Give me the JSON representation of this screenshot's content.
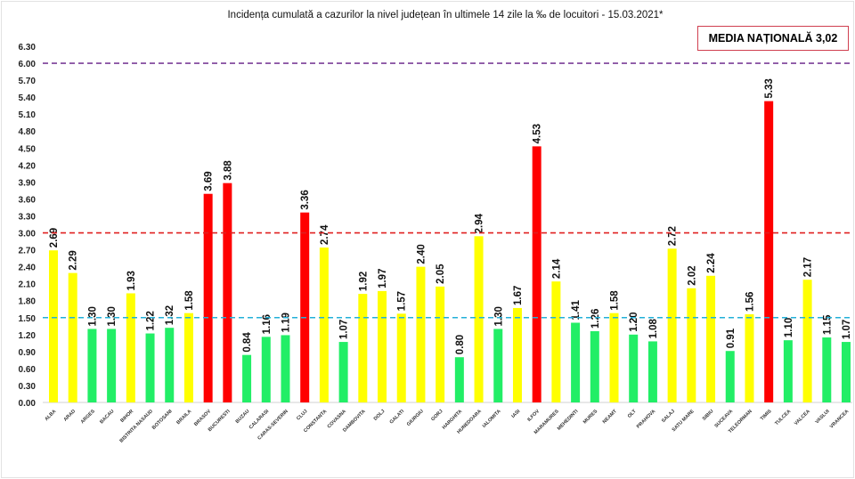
{
  "chart_data": {
    "type": "bar",
    "title": "Incidența cumulată a cazurilor la nivel județean în ultimele 14 zile   la ‰ de locuitori  - 15.03.2021*",
    "annotation": "MEDIA NAȚIONALĂ 3,02",
    "categories": [
      "ALBA",
      "ARAD",
      "ARGES",
      "BACAU",
      "BIHOR",
      "BISTRITA NASAUD",
      "BOTOSANI",
      "BRAILA",
      "BRASOV",
      "BUCURESTI",
      "BUZAU",
      "CALARASI",
      "CARAS-SEVERIN",
      "CLUJ",
      "CONSTANTA",
      "COVASNA",
      "DAMBOVITA",
      "DOLJ",
      "GALATI",
      "GIURGIU",
      "GORJ",
      "HARGHITA",
      "HUNEDOARA",
      "IALOMITA",
      "IASI",
      "ILFOV",
      "MARAMURES",
      "MEHEDINTI",
      "MURES",
      "NEAMT",
      "OLT",
      "PRAHOVA",
      "SALAJ",
      "SATU MARE",
      "SIBIU",
      "SUCEAVA",
      "TELEORMAN",
      "TIMIS",
      "TULCEA",
      "VALCEA",
      "VASLUI",
      "VRANCEA"
    ],
    "values": [
      2.69,
      2.29,
      1.3,
      1.3,
      1.93,
      1.22,
      1.32,
      1.58,
      3.69,
      3.88,
      0.84,
      1.16,
      1.19,
      3.36,
      2.74,
      1.07,
      1.92,
      1.97,
      1.57,
      2.4,
      2.05,
      0.8,
      2.94,
      1.3,
      1.67,
      4.53,
      2.14,
      1.41,
      1.26,
      1.58,
      1.2,
      1.08,
      2.72,
      2.02,
      2.24,
      0.91,
      1.56,
      5.33,
      1.1,
      2.17,
      1.15,
      1.07
    ],
    "ylim": [
      0,
      6.3
    ],
    "yticks": [
      "0.00",
      "0.30",
      "0.60",
      "0.90",
      "1.20",
      "1.50",
      "1.80",
      "2.10",
      "2.40",
      "2.70",
      "3.00",
      "3.30",
      "3.60",
      "3.90",
      "4.20",
      "4.50",
      "4.80",
      "5.10",
      "5.40",
      "5.70",
      "6.00",
      "6.30"
    ],
    "reference_lines": [
      {
        "value": 6.0,
        "color": "#7b3f98"
      },
      {
        "value": 3.0,
        "color": "#e02020"
      },
      {
        "value": 1.5,
        "color": "#22b0d8"
      }
    ],
    "color_thresholds": {
      "low": "#22ee66",
      "medium": "#ffff00",
      "high": "#ff0000",
      "low_below": 1.5,
      "high_above": 3.0
    },
    "grid": false,
    "legend": "none"
  }
}
